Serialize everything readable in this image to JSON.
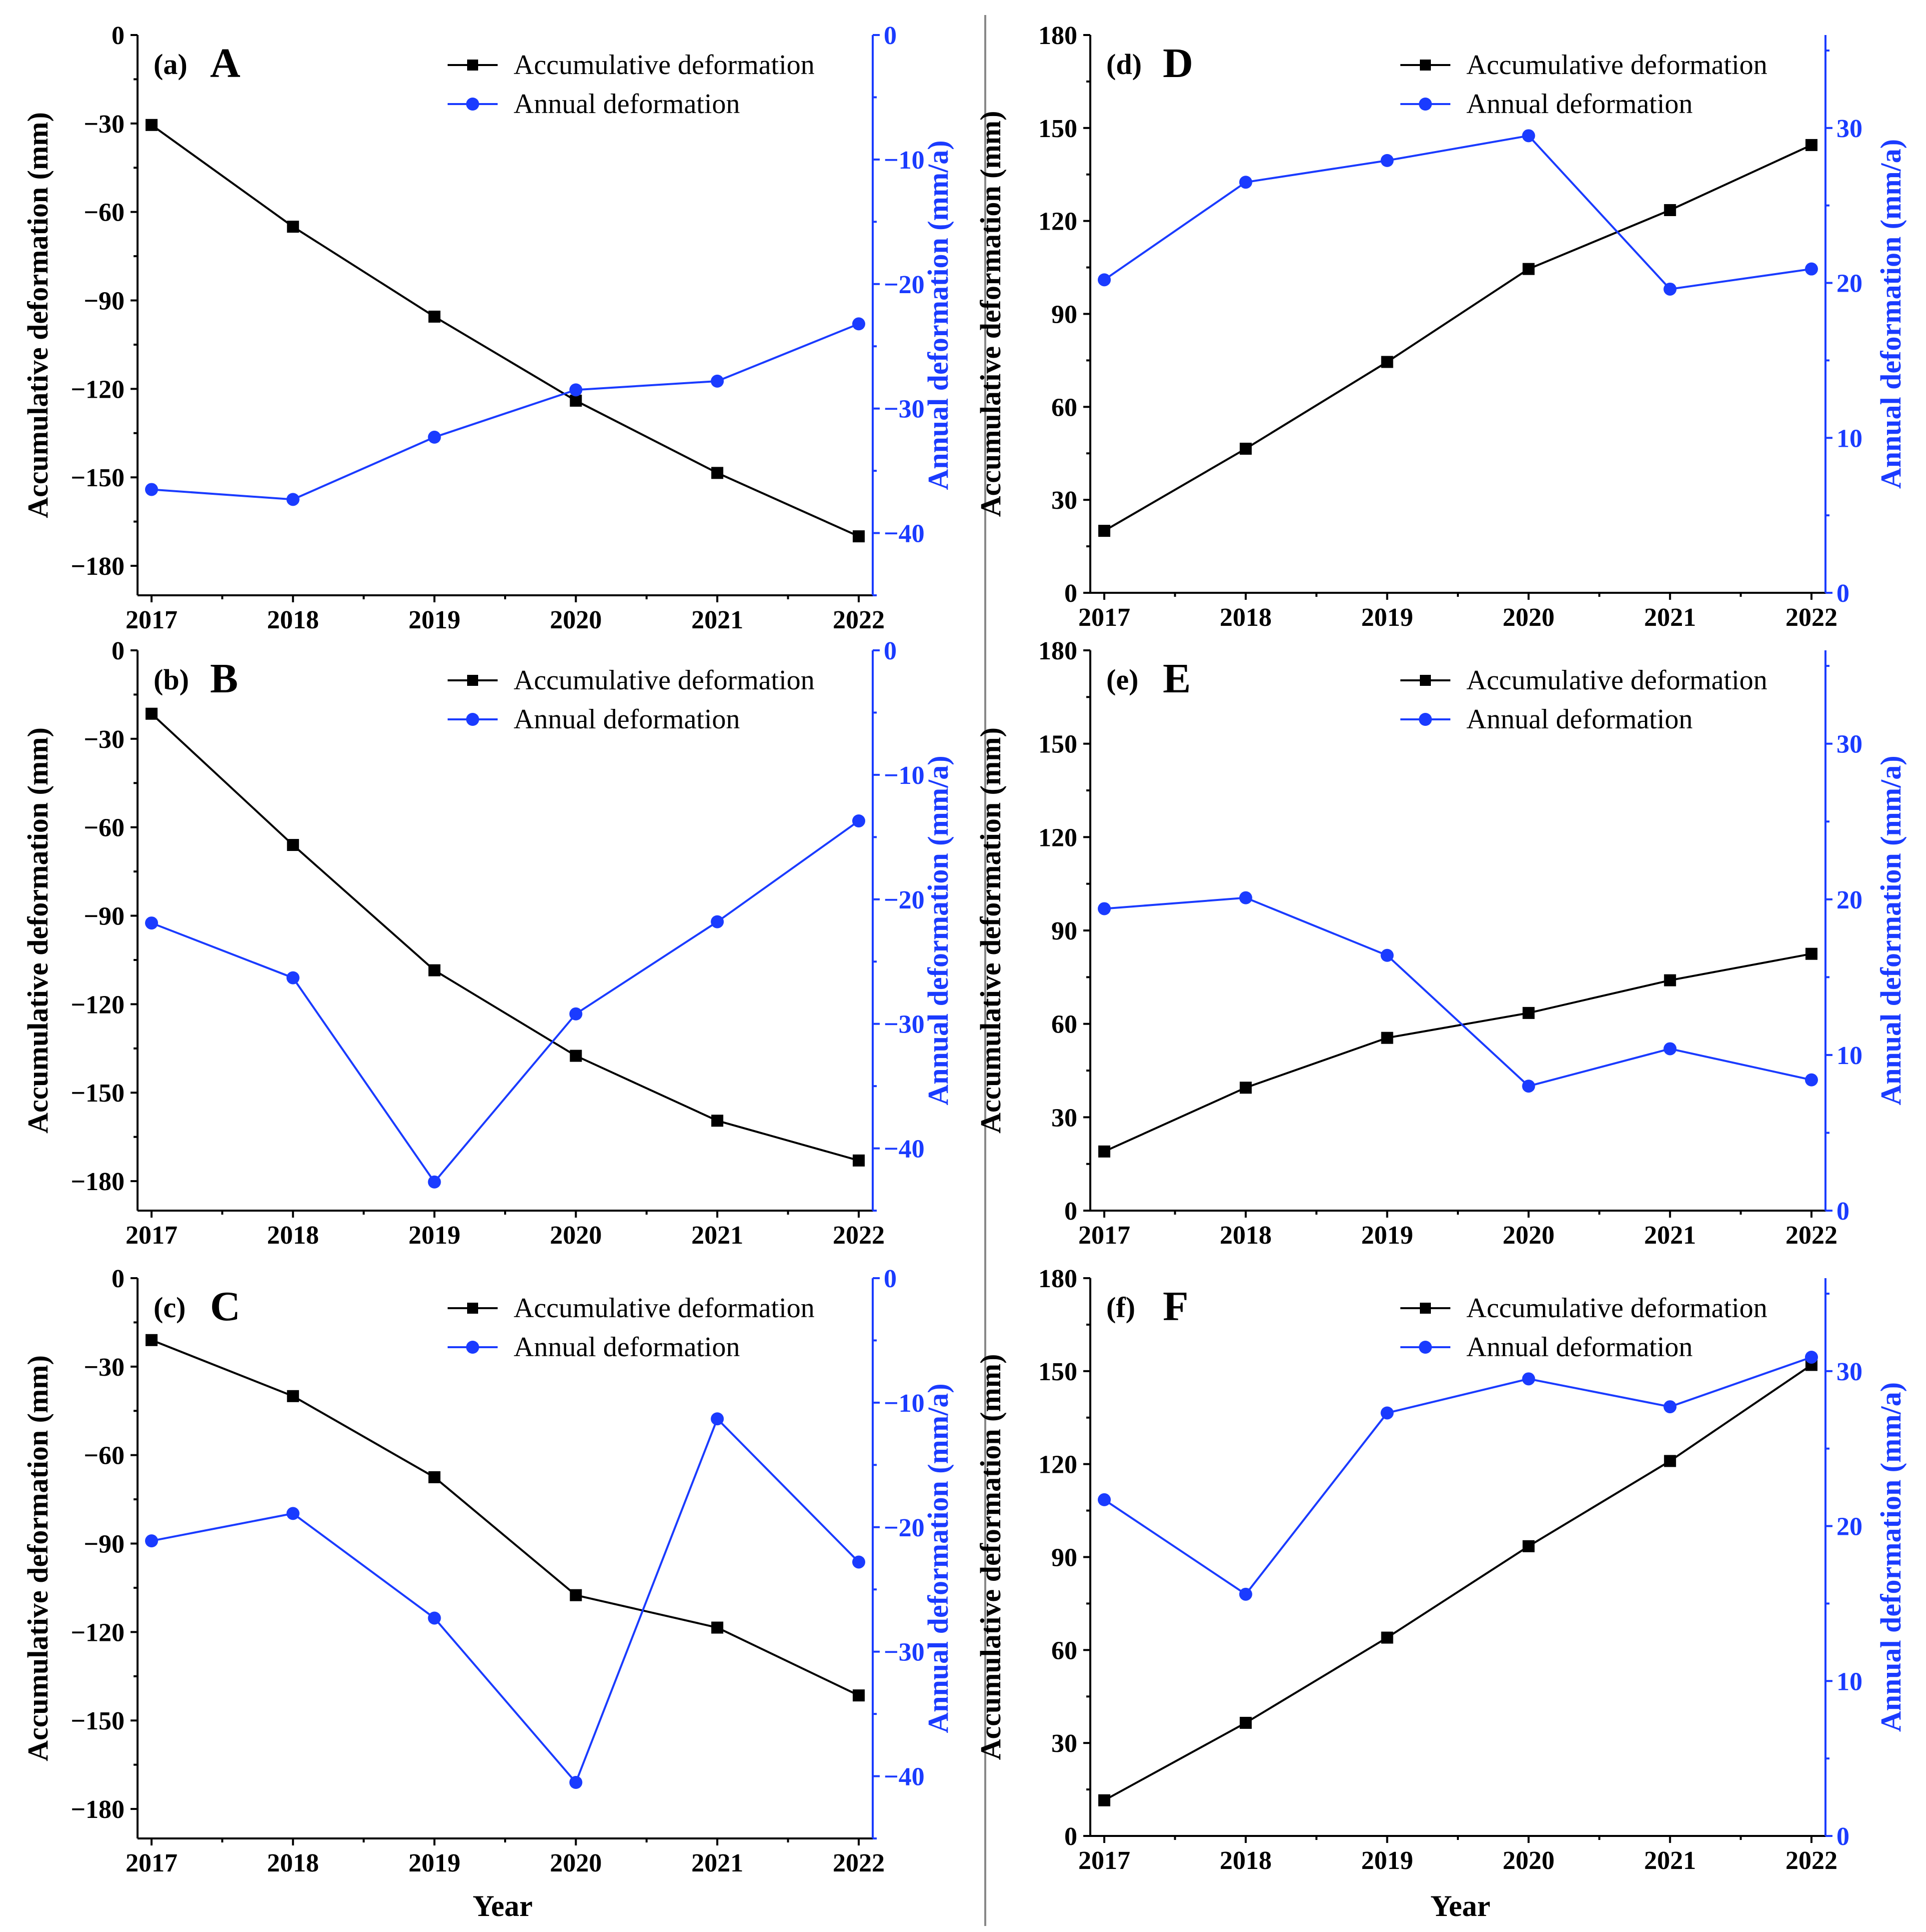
{
  "figure": {
    "x_axis_title": "Year",
    "left_axis_title": "Accumulative deformation (mm)",
    "right_axis_title": "Annual deformation (mm/a)",
    "legend": {
      "accumulative": "Accumulative deformation",
      "annual": "Annual deformation"
    },
    "colors": {
      "accumulative": "#000000",
      "annual": "#1a3bff"
    }
  },
  "chart_data": [
    {
      "type": "line",
      "id": "a",
      "panel_label": "(a)",
      "panel_letter": "A",
      "categories": [
        "2017",
        "2018",
        "2019",
        "2020",
        "2021",
        "2022"
      ],
      "y_left_ticks": [
        "0",
        "−30",
        "−60",
        "−90",
        "−120",
        "−150",
        "−180"
      ],
      "y_right_ticks": [
        "0",
        "−10",
        "−20",
        "−30",
        "−40"
      ],
      "y_left_lim": [
        -190,
        0
      ],
      "y_right_lim": [
        -45,
        0
      ],
      "series": [
        {
          "name": "Accumulative deformation",
          "axis": "left",
          "marker": "square",
          "values": [
            -30.5,
            -65,
            -95.5,
            -124,
            -148.5,
            -170
          ]
        },
        {
          "name": "Annual deformation",
          "axis": "right",
          "marker": "circle",
          "values": [
            -36.5,
            -37.3,
            -32.3,
            -28.5,
            -27.8,
            -23.2
          ]
        }
      ]
    },
    {
      "type": "line",
      "id": "b",
      "panel_label": "(b)",
      "panel_letter": "B",
      "categories": [
        "2017",
        "2018",
        "2019",
        "2020",
        "2021",
        "2022"
      ],
      "y_left_ticks": [
        "0",
        "−30",
        "−60",
        "−90",
        "−120",
        "−150",
        "−180"
      ],
      "y_right_ticks": [
        "0",
        "−10",
        "−20",
        "−30",
        "−40"
      ],
      "y_left_lim": [
        -190,
        0
      ],
      "y_right_lim": [
        -45,
        0
      ],
      "series": [
        {
          "name": "Accumulative deformation",
          "axis": "left",
          "marker": "square",
          "values": [
            -21.5,
            -66,
            -108.5,
            -137.5,
            -159.5,
            -173
          ]
        },
        {
          "name": "Annual deformation",
          "axis": "right",
          "marker": "circle",
          "values": [
            -21.9,
            -26.3,
            -42.7,
            -29.2,
            -21.8,
            -13.7
          ]
        }
      ]
    },
    {
      "type": "line",
      "id": "c",
      "panel_label": "(c)",
      "panel_letter": "C",
      "categories": [
        "2017",
        "2018",
        "2019",
        "2020",
        "2021",
        "2022"
      ],
      "y_left_ticks": [
        "0",
        "−30",
        "−60",
        "−90",
        "−120",
        "−150",
        "−180"
      ],
      "y_right_ticks": [
        "0",
        "−10",
        "−20",
        "−30",
        "−40"
      ],
      "y_left_lim": [
        -190,
        0
      ],
      "y_right_lim": [
        -45,
        0
      ],
      "series": [
        {
          "name": "Accumulative deformation",
          "axis": "left",
          "marker": "square",
          "values": [
            -21,
            -40,
            -67.5,
            -107.5,
            -118.5,
            -141.5
          ]
        },
        {
          "name": "Annual deformation",
          "axis": "right",
          "marker": "circle",
          "values": [
            -21.1,
            -18.9,
            -27.3,
            -40.5,
            -11.3,
            -22.8
          ]
        }
      ]
    },
    {
      "type": "line",
      "id": "d",
      "panel_label": "(d)",
      "panel_letter": "D",
      "categories": [
        "2017",
        "2018",
        "2019",
        "2020",
        "2021",
        "2022"
      ],
      "y_left_ticks": [
        "0",
        "30",
        "60",
        "90",
        "120",
        "150",
        "180"
      ],
      "y_right_ticks": [
        "0",
        "10",
        "20",
        "30"
      ],
      "y_left_lim": [
        0,
        180
      ],
      "y_right_lim": [
        0,
        36
      ],
      "series": [
        {
          "name": "Accumulative deformation",
          "axis": "left",
          "marker": "square",
          "values": [
            20,
            46.5,
            74.5,
            104.5,
            123.5,
            144.5
          ]
        },
        {
          "name": "Annual deformation",
          "axis": "right",
          "marker": "circle",
          "values": [
            20.2,
            26.5,
            27.9,
            29.5,
            19.6,
            20.9
          ]
        }
      ]
    },
    {
      "type": "line",
      "id": "e",
      "panel_label": "(e)",
      "panel_letter": "E",
      "categories": [
        "2017",
        "2018",
        "2019",
        "2020",
        "2021",
        "2022"
      ],
      "y_left_ticks": [
        "0",
        "30",
        "60",
        "90",
        "120",
        "150",
        "180"
      ],
      "y_right_ticks": [
        "0",
        "10",
        "20",
        "30"
      ],
      "y_left_lim": [
        0,
        180
      ],
      "y_right_lim": [
        0,
        36
      ],
      "series": [
        {
          "name": "Accumulative deformation",
          "axis": "left",
          "marker": "square",
          "values": [
            19,
            39.5,
            55.5,
            63.5,
            74,
            82.5
          ]
        },
        {
          "name": "Annual deformation",
          "axis": "right",
          "marker": "circle",
          "values": [
            19.4,
            20.1,
            16.4,
            8.0,
            10.4,
            8.4
          ]
        }
      ]
    },
    {
      "type": "line",
      "id": "f",
      "panel_label": "(f)",
      "panel_letter": "F",
      "categories": [
        "2017",
        "2018",
        "2019",
        "2020",
        "2021",
        "2022"
      ],
      "y_left_ticks": [
        "0",
        "30",
        "60",
        "90",
        "120",
        "150",
        "180"
      ],
      "y_right_ticks": [
        "0",
        "10",
        "20",
        "30"
      ],
      "y_left_lim": [
        0,
        180
      ],
      "y_right_lim": [
        0,
        36
      ],
      "series": [
        {
          "name": "Accumulative deformation",
          "axis": "left",
          "marker": "square",
          "values": [
            11.5,
            36.5,
            64,
            93.5,
            121,
            152
          ]
        },
        {
          "name": "Annual deformation",
          "axis": "right",
          "marker": "circle",
          "values": [
            21.7,
            15.6,
            27.3,
            29.5,
            27.7,
            30.9
          ]
        }
      ]
    }
  ]
}
